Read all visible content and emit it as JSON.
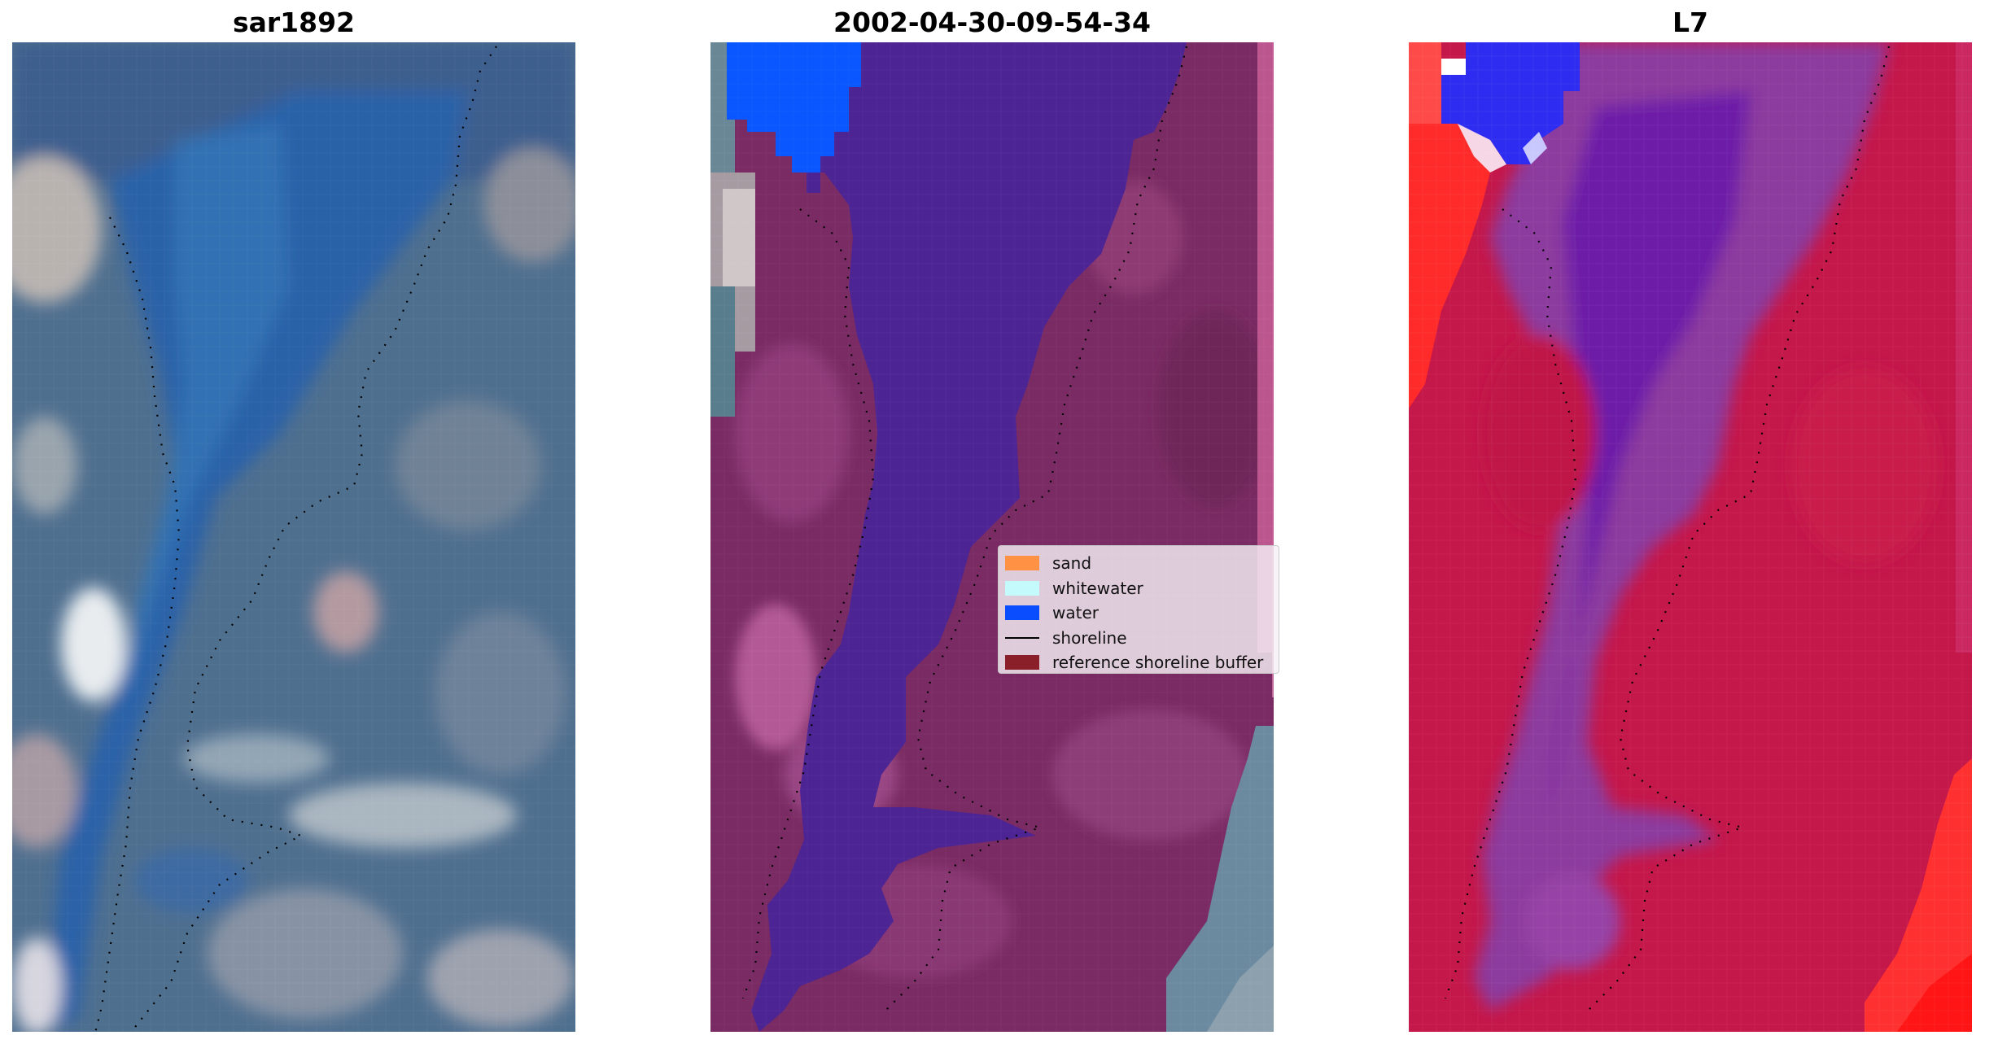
{
  "panels": [
    {
      "title": "sar1892"
    },
    {
      "title": "2002-04-30-09-54-34"
    },
    {
      "title": "L7"
    }
  ],
  "legend": {
    "items": [
      {
        "label": "sand",
        "kind": "patch",
        "color": "#ff9144"
      },
      {
        "label": "whitewater",
        "kind": "patch",
        "color": "#c5fafc"
      },
      {
        "label": "water",
        "kind": "patch",
        "color": "#0a4dff"
      },
      {
        "label": "shoreline",
        "kind": "line",
        "color": "#000000"
      },
      {
        "label": "reference shoreline buffer",
        "kind": "patch",
        "color": "#8a1f2a"
      }
    ]
  },
  "colors": {
    "panel1_base": "#4a6b8e",
    "panel1_water": "#2f5fa8",
    "panel2_land": "#7b2d66",
    "panel2_water_class": "#4b2494",
    "panel2_blue_class": "#0a56ff",
    "panel3_land": "#c0184a",
    "panel3_water": "#6a1fa6",
    "panel3_red": "#ff2a2a"
  }
}
